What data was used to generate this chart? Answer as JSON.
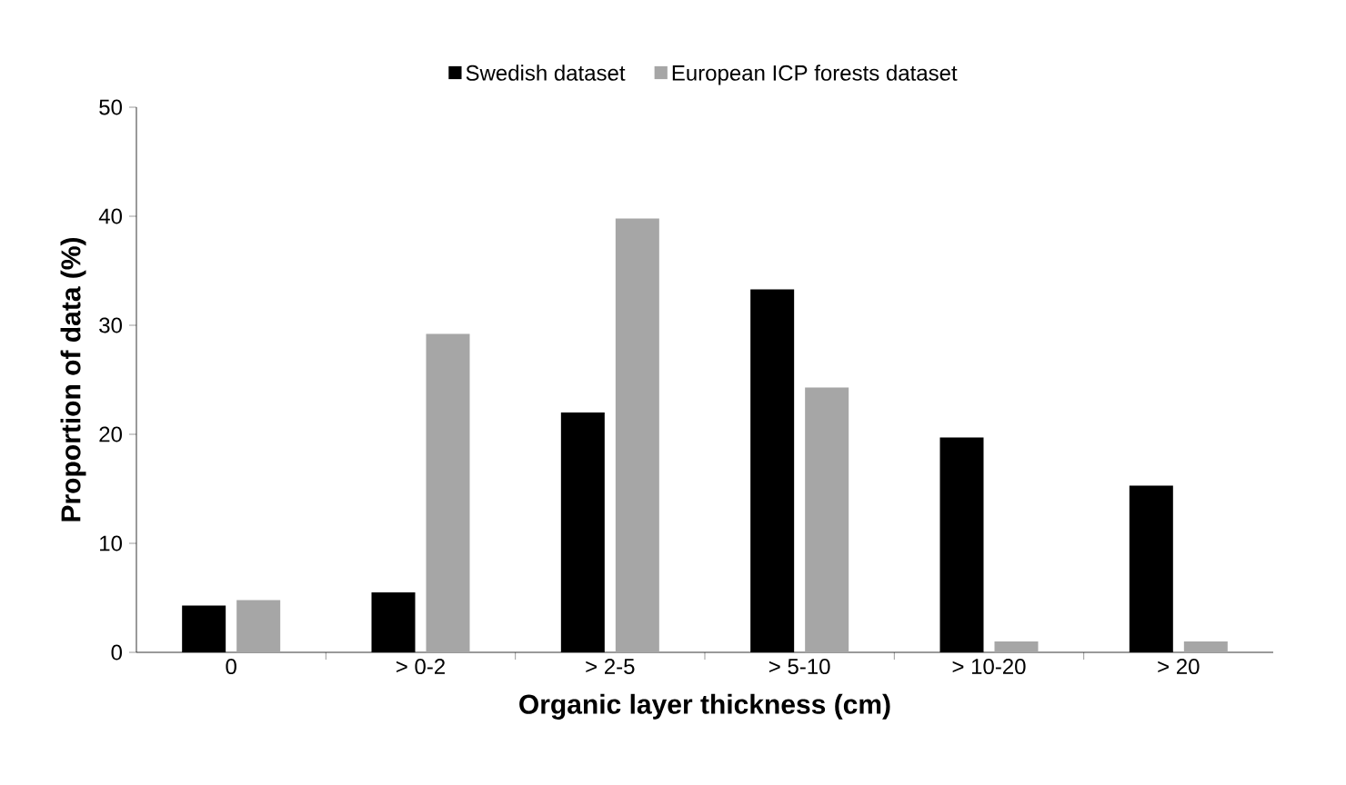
{
  "chart_data": {
    "type": "bar",
    "xlabel": "Organic layer thickness (cm)",
    "ylabel": "Proportion of data (%)",
    "categories": [
      "0",
      "> 0-2",
      "> 2-5",
      "> 5-10",
      "> 10-20",
      "> 20"
    ],
    "series": [
      {
        "name": "Swedish dataset",
        "color": "#000000",
        "values": [
          4.3,
          5.5,
          22.0,
          33.3,
          19.7,
          15.3
        ]
      },
      {
        "name": "European ICP forests dataset",
        "color": "#a6a6a6",
        "values": [
          4.8,
          29.2,
          39.8,
          24.3,
          1.0,
          1.0
        ]
      }
    ],
    "ylim": [
      0,
      50
    ],
    "yticks": [
      0,
      10,
      20,
      30,
      40,
      50
    ],
    "grid": false,
    "legend": "top"
  }
}
